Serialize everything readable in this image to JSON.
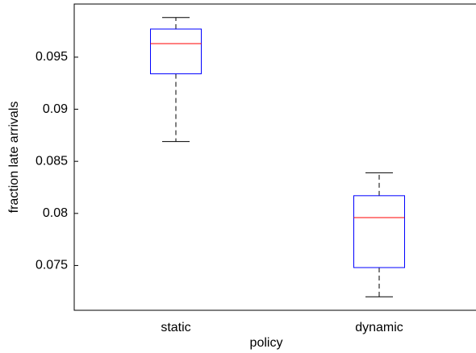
{
  "chart_data": {
    "type": "box",
    "x_label": "policy",
    "y_label": "fraction late arrivals",
    "categories": [
      "static",
      "dynamic"
    ],
    "boxes": [
      {
        "min": 0.0869,
        "q1": 0.0934,
        "median": 0.0963,
        "q3": 0.0977,
        "max": 0.0988
      },
      {
        "min": 0.072,
        "q1": 0.0748,
        "median": 0.0796,
        "q3": 0.0817,
        "max": 0.0839
      }
    ],
    "box_color": "#0000ff",
    "median_color": "#ff0000",
    "whisker_color": "#000000",
    "ylim": [
      0.0707,
      0.1001
    ],
    "yticks": [
      0.075,
      0.08,
      0.085,
      0.09,
      0.095
    ]
  }
}
